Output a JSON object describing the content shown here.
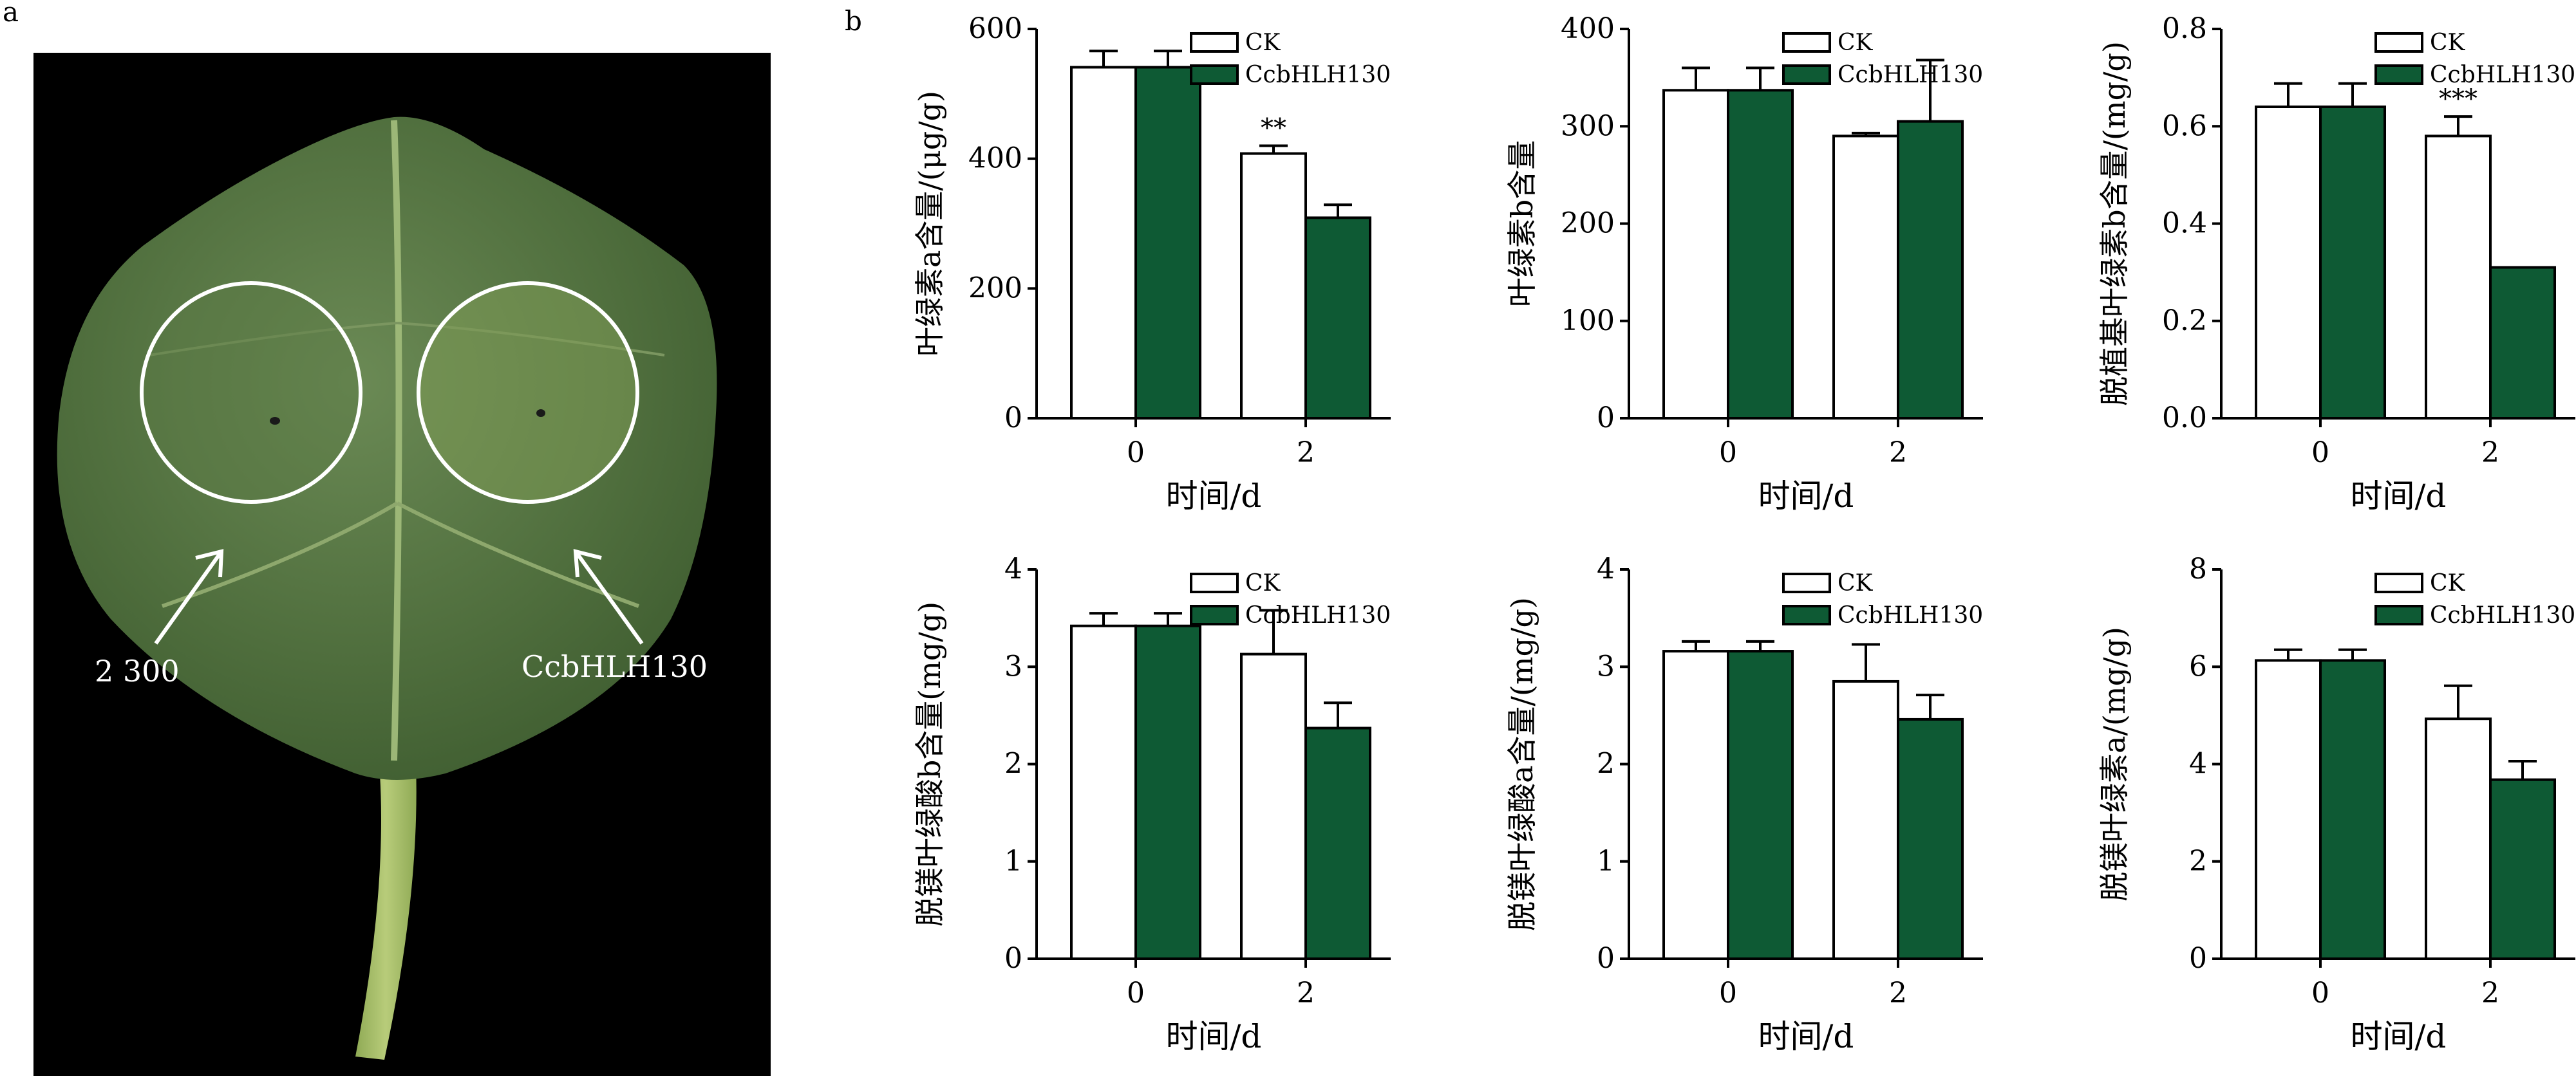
{
  "panel_a": {
    "label": "a",
    "annotations": [
      "2 300",
      "CcbHLH130"
    ]
  },
  "panel_b": {
    "label": "b"
  },
  "colors": {
    "ck": "#ffffff",
    "treat": "#0e5a34",
    "axis": "#000000",
    "leaf_bg": "#000000"
  },
  "chart_data": [
    {
      "type": "bar",
      "categories": [
        "0",
        "2"
      ],
      "series": [
        {
          "name": "CK",
          "values": [
            541,
            408
          ],
          "errors": [
            25,
            12
          ]
        },
        {
          "name": "CcbHLH130",
          "values": [
            541,
            309
          ],
          "errors": [
            25,
            20
          ]
        }
      ],
      "significance": [
        "",
        "**"
      ],
      "title": "",
      "xlabel": "时间/d",
      "ylabel": "叶绿素a含量/(μg/g)",
      "ylim": [
        0,
        600
      ],
      "yticks": [
        0,
        200,
        400,
        600
      ],
      "ytick_labels": [
        "0",
        "200",
        "400",
        "600"
      ],
      "legend": "top-right"
    },
    {
      "type": "bar",
      "categories": [
        "0",
        "2"
      ],
      "series": [
        {
          "name": "CK",
          "values": [
            337,
            290
          ],
          "errors": [
            23,
            3
          ]
        },
        {
          "name": "CcbHLH130",
          "values": [
            337,
            305
          ],
          "errors": [
            23,
            63
          ]
        }
      ],
      "significance": [
        "",
        ""
      ],
      "title": "",
      "xlabel": "时间/d",
      "ylabel": "叶绿素b含量",
      "ylim": [
        0,
        400
      ],
      "yticks": [
        0,
        100,
        200,
        300,
        400
      ],
      "ytick_labels": [
        "0",
        "100",
        "200",
        "300",
        "400"
      ],
      "legend": "top-right"
    },
    {
      "type": "bar",
      "categories": [
        "0",
        "2"
      ],
      "series": [
        {
          "name": "CK",
          "values": [
            0.64,
            0.58
          ],
          "errors": [
            0.048,
            0.04
          ]
        },
        {
          "name": "CcbHLH130",
          "values": [
            0.64,
            0.31
          ],
          "errors": [
            0.048,
            0.0
          ]
        }
      ],
      "significance": [
        "",
        "***"
      ],
      "title": "",
      "xlabel": "时间/d",
      "ylabel": "脱植基叶绿素b含量/(mg/g)",
      "ylim": [
        0,
        0.8
      ],
      "yticks": [
        0,
        0.2,
        0.4,
        0.6,
        0.8
      ],
      "ytick_labels": [
        "0.0",
        "0.2",
        "0.4",
        "0.6",
        "0.8"
      ],
      "legend": "top-right"
    },
    {
      "type": "bar",
      "categories": [
        "0",
        "2"
      ],
      "series": [
        {
          "name": "CK",
          "values": [
            3.42,
            3.13
          ],
          "errors": [
            0.13,
            0.45
          ]
        },
        {
          "name": "CcbHLH130",
          "values": [
            3.42,
            2.37
          ],
          "errors": [
            0.13,
            0.26
          ]
        }
      ],
      "significance": [
        "",
        ""
      ],
      "title": "",
      "xlabel": "时间/d",
      "ylabel": "脱镁叶绿酸b含量(mg/g)",
      "ylim": [
        0,
        4
      ],
      "yticks": [
        0,
        1,
        2,
        3,
        4
      ],
      "ytick_labels": [
        "0",
        "1",
        "2",
        "3",
        "4"
      ],
      "legend": "top-right"
    },
    {
      "type": "bar",
      "categories": [
        "0",
        "2"
      ],
      "series": [
        {
          "name": "CK",
          "values": [
            3.16,
            2.85
          ],
          "errors": [
            0.1,
            0.38
          ]
        },
        {
          "name": "CcbHLH130",
          "values": [
            3.16,
            2.46
          ],
          "errors": [
            0.1,
            0.25
          ]
        }
      ],
      "significance": [
        "",
        ""
      ],
      "title": "",
      "xlabel": "时间/d",
      "ylabel": "脱镁叶绿酸a含量/(mg/g)",
      "ylim": [
        0,
        4
      ],
      "yticks": [
        0,
        1,
        2,
        3,
        4
      ],
      "ytick_labels": [
        "0",
        "1",
        "2",
        "3",
        "4"
      ],
      "legend": "top-right"
    },
    {
      "type": "bar",
      "categories": [
        "0",
        "2"
      ],
      "series": [
        {
          "name": "CK",
          "values": [
            6.13,
            4.93
          ],
          "errors": [
            0.22,
            0.68
          ]
        },
        {
          "name": "CcbHLH130",
          "values": [
            6.13,
            3.68
          ],
          "errors": [
            0.22,
            0.38
          ]
        }
      ],
      "significance": [
        "",
        ""
      ],
      "title": "",
      "xlabel": "时间/d",
      "ylabel": "脱镁叶绿素a/(mg/g)",
      "ylim": [
        0,
        8
      ],
      "yticks": [
        0,
        2,
        4,
        6,
        8
      ],
      "ytick_labels": [
        "0",
        "2",
        "4",
        "6",
        "8"
      ],
      "legend": "top-right"
    }
  ]
}
